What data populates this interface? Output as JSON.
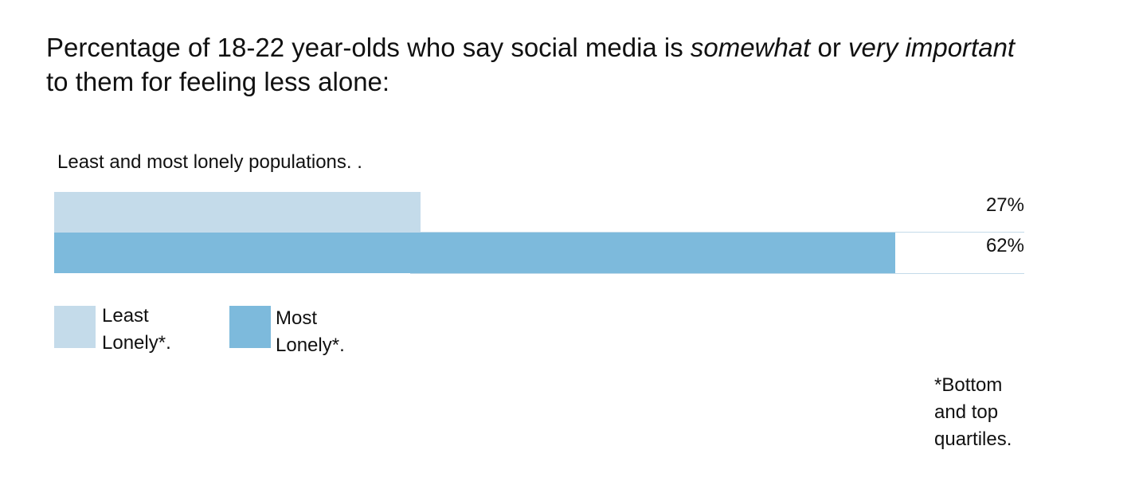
{
  "chart_data": {
    "type": "bar",
    "orientation": "horizontal",
    "title": [
      {
        "text": "Percentage of 18-22 year-olds who say social media is ",
        "italic": false
      },
      {
        "text": "somewhat",
        "italic": true
      },
      {
        "text": " or ",
        "italic": false
      },
      {
        "text": "very important",
        "italic": true
      },
      {
        "text": " to them for feeling less alone:",
        "italic": false
      }
    ],
    "subtitle": "Least and most lonely populations. .",
    "series": [
      {
        "name": "Least Lonely*.",
        "color": "#c4dbea",
        "values": [
          27
        ],
        "value_labels": [
          "27%"
        ]
      },
      {
        "name": "Most Lonely*.",
        "color": "#7dbadc",
        "values": [
          62
        ],
        "value_labels": [
          "62%"
        ]
      }
    ],
    "footnote": "*Bottom and top quartiles."
  }
}
